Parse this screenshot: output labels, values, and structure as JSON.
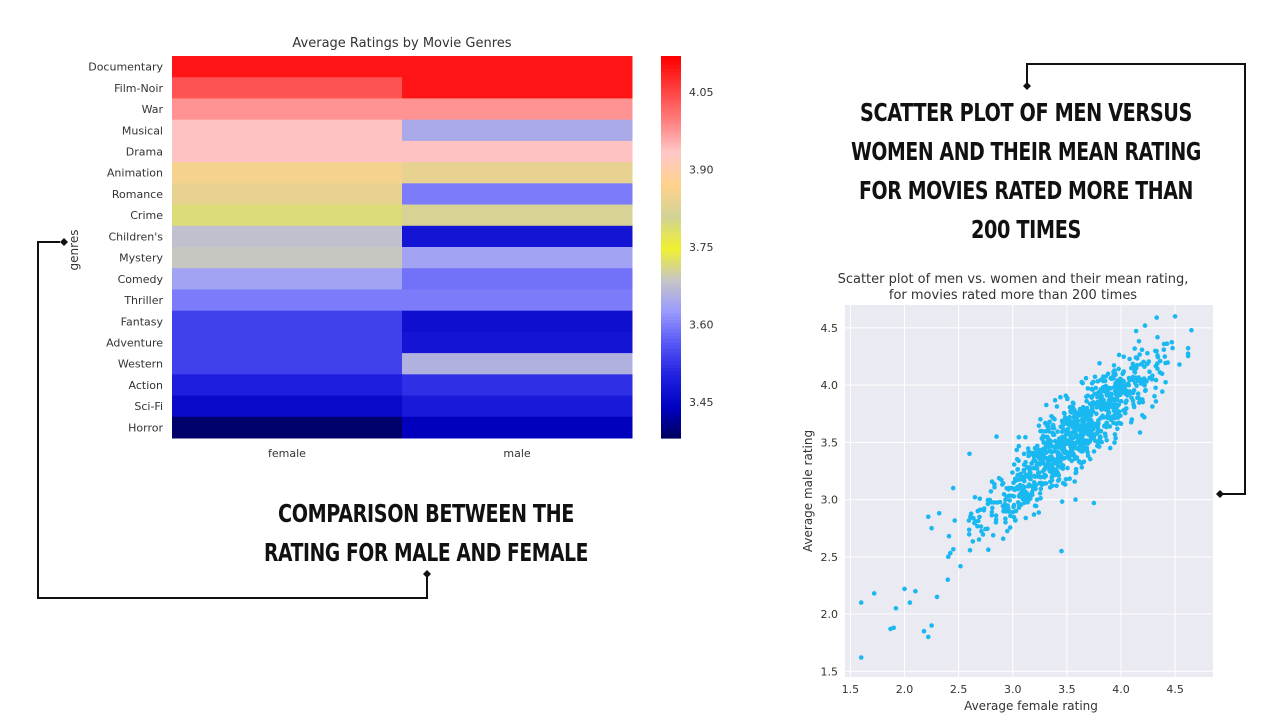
{
  "captions": {
    "scatter": [
      "SCATTER PLOT OF MEN VERSUS",
      "WOMEN AND THEIR MEAN RATING",
      "FOR MOVIES  RATED MORE THAN",
      "200 TIMES"
    ],
    "heatmap": [
      "COMPARISON BETWEEN THE",
      "RATING FOR MALE  AND FEMALE"
    ]
  },
  "colors": {
    "cmap": [
      "#00005a",
      "#0000c0",
      "#2020e0",
      "#5656f6",
      "#9999ff",
      "#c6c6c6",
      "#f0f030",
      "#d2d296",
      "#ffd28c",
      "#ffc8c8",
      "#ff8080",
      "#ff4040",
      "#ff0000"
    ],
    "scatter_point": "#19b8f0",
    "scatter_bg": "#eaeaf2",
    "grid": "#ffffff",
    "connector": "#111111"
  },
  "chart_data": [
    {
      "type": "heatmap",
      "title": "Average Ratings by Movie Genres",
      "ylabel": "genres",
      "xlabel": "",
      "columns": [
        "female",
        "male"
      ],
      "rows": [
        "Documentary",
        "Film-Noir",
        "War",
        "Musical",
        "Drama",
        "Animation",
        "Romance",
        "Crime",
        "Children's",
        "Mystery",
        "Comedy",
        "Thriller",
        "Fantasy",
        "Adventure",
        "Western",
        "Action",
        "Sci-Fi",
        "Horror"
      ],
      "values": [
        [
          4.1,
          4.1
        ],
        [
          4.04,
          4.1
        ],
        [
          3.98,
          3.98
        ],
        [
          3.94,
          3.65
        ],
        [
          3.94,
          3.94
        ],
        [
          3.86,
          3.84
        ],
        [
          3.84,
          3.6
        ],
        [
          3.72,
          3.82
        ],
        [
          3.68,
          3.48
        ],
        [
          3.69,
          3.64
        ],
        [
          3.64,
          3.59
        ],
        [
          3.6,
          3.6
        ],
        [
          3.54,
          3.47
        ],
        [
          3.54,
          3.48
        ],
        [
          3.54,
          3.66
        ],
        [
          3.5,
          3.52
        ],
        [
          3.46,
          3.49
        ],
        [
          3.39,
          3.44
        ]
      ],
      "colorbar": {
        "range": [
          3.38,
          4.12
        ],
        "ticks": [
          4.05,
          3.9,
          3.75,
          3.6,
          3.45
        ]
      }
    },
    {
      "type": "scatter",
      "title": [
        "Scatter plot of men vs. women and their mean rating,",
        "for movies rated more than 200 times"
      ],
      "xlabel": "Average female rating",
      "ylabel": "Average male rating",
      "xlim": [
        1.45,
        4.85
      ],
      "ylim": [
        1.45,
        4.7
      ],
      "xticks": [
        1.5,
        2.0,
        2.5,
        3.0,
        3.5,
        4.0,
        4.5
      ],
      "yticks": [
        1.5,
        2.0,
        2.5,
        3.0,
        3.5,
        4.0,
        4.5
      ],
      "grid": true,
      "points_shown": 1000,
      "trend": {
        "slope": 0.87,
        "intercept": 0.46,
        "spread": 0.16
      },
      "points": [
        [
          1.6,
          1.62
        ],
        [
          1.6,
          2.1
        ],
        [
          1.72,
          2.18
        ],
        [
          1.87,
          1.87
        ],
        [
          1.9,
          1.88
        ],
        [
          1.92,
          2.05
        ],
        [
          2.0,
          2.22
        ],
        [
          2.18,
          1.85
        ],
        [
          2.22,
          1.8
        ],
        [
          2.25,
          1.9
        ],
        [
          2.3,
          2.15
        ],
        [
          2.25,
          2.75
        ],
        [
          2.32,
          2.88
        ],
        [
          2.22,
          2.85
        ],
        [
          2.45,
          3.1
        ],
        [
          2.65,
          3.02
        ],
        [
          3.75,
          2.97
        ],
        [
          2.6,
          3.4
        ],
        [
          2.85,
          3.55
        ],
        [
          4.65,
          4.48
        ],
        [
          4.5,
          4.6
        ],
        [
          4.33,
          4.59
        ],
        [
          4.38,
          4.1
        ],
        [
          3.9,
          3.45
        ],
        [
          4.1,
          3.7
        ],
        [
          3.45,
          2.55
        ],
        [
          3.58,
          3.0
        ],
        [
          2.4,
          2.3
        ],
        [
          2.05,
          2.1
        ],
        [
          2.1,
          2.2
        ]
      ]
    }
  ]
}
